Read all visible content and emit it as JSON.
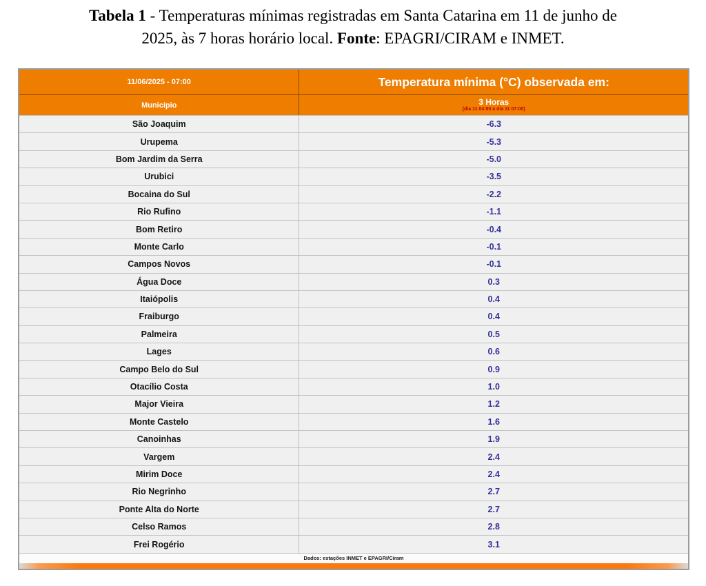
{
  "caption": {
    "line1_bold": "Tabela 1",
    "line1_rest": " - Temperaturas mínimas registradas em Santa Catarina em 11 de junho de",
    "line2_pre": "2025, às 7 horas horário local. ",
    "line2_bold": "Fonte",
    "line2_rest": ": EPAGRI/CIRAM e INMET."
  },
  "table": {
    "header": {
      "datetime": "11/06/2025 - 07:00",
      "observed_title": "Temperatura mínima (°C) observada em:",
      "municipality_col": "Município",
      "period_col": "3 Horas",
      "period_note": "(dia 11 04:00 a dia 11 07:00)"
    },
    "rows": [
      {
        "municipio": "São Joaquim",
        "valor": "-6.3"
      },
      {
        "municipio": "Urupema",
        "valor": "-5.3"
      },
      {
        "municipio": "Bom Jardim da Serra",
        "valor": "-5.0"
      },
      {
        "municipio": "Urubici",
        "valor": "-3.5"
      },
      {
        "municipio": "Bocaina do Sul",
        "valor": "-2.2"
      },
      {
        "municipio": "Rio Rufino",
        "valor": "-1.1"
      },
      {
        "municipio": "Bom Retiro",
        "valor": "-0.4"
      },
      {
        "municipio": "Monte Carlo",
        "valor": "-0.1"
      },
      {
        "municipio": "Campos Novos",
        "valor": "-0.1"
      },
      {
        "municipio": "Água Doce",
        "valor": "0.3"
      },
      {
        "municipio": "Itaiópolis",
        "valor": "0.4"
      },
      {
        "municipio": "Fraiburgo",
        "valor": "0.4"
      },
      {
        "municipio": "Palmeira",
        "valor": "0.5"
      },
      {
        "municipio": "Lages",
        "valor": "0.6"
      },
      {
        "municipio": "Campo Belo do Sul",
        "valor": "0.9"
      },
      {
        "municipio": "Otacílio Costa",
        "valor": "1.0"
      },
      {
        "municipio": "Major Vieira",
        "valor": "1.2"
      },
      {
        "municipio": "Monte Castelo",
        "valor": "1.6"
      },
      {
        "municipio": "Canoinhas",
        "valor": "1.9"
      },
      {
        "municipio": "Vargem",
        "valor": "2.4"
      },
      {
        "municipio": "Mirim Doce",
        "valor": "2.4"
      },
      {
        "municipio": "Rio Negrinho",
        "valor": "2.7"
      },
      {
        "municipio": "Ponte Alta do Norte",
        "valor": "2.7"
      },
      {
        "municipio": "Celso Ramos",
        "valor": "2.8"
      },
      {
        "municipio": "Frei Rogério",
        "valor": "3.1"
      }
    ],
    "footer_note": "Dados: estações INMET e EPAGRI/Ciram"
  },
  "colors": {
    "header_orange": "#EE7D00",
    "bar_orange": "#F97A12",
    "value_blue": "#32329B",
    "note_red": "#C00000",
    "row_bg": "#F0F0F0",
    "outer_border": "#9B9B9B"
  }
}
